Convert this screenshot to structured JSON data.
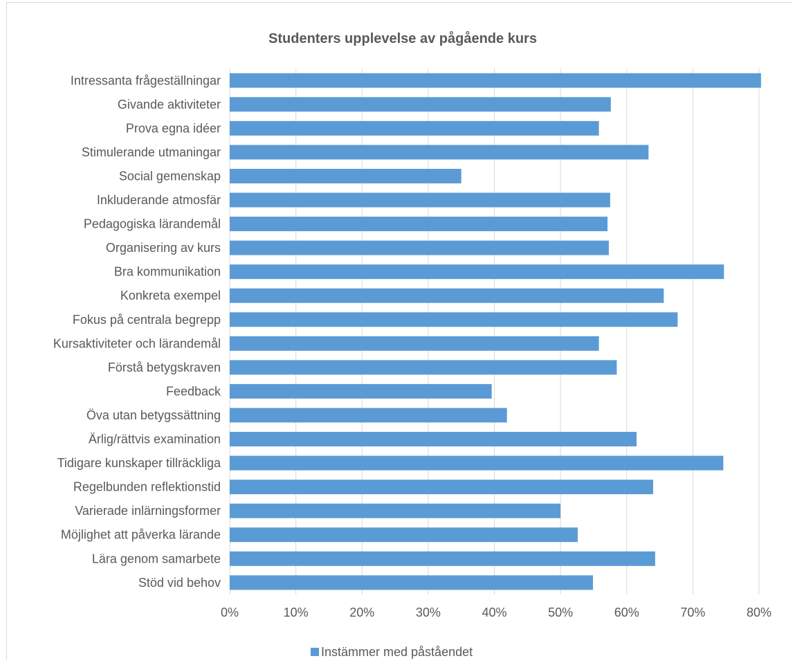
{
  "chart_data": {
    "type": "bar",
    "orientation": "horizontal",
    "title": "Studenters upplevelse av pågående kurs",
    "categories": [
      "Intressanta frågeställningar",
      "Givande aktiviteter",
      "Prova egna idéer",
      "Stimulerande utmaningar",
      "Social gemenskap",
      "Inkluderande atmosfär",
      "Pedagogiska lärandemål ",
      "Organisering av kurs",
      "Bra kommunikation",
      "Konkreta exempel ",
      "Fokus på centrala begrepp",
      "Kursaktiviteter och lärandemål",
      "Förstå betygskraven",
      "Feedback",
      "Öva utan betygssättning",
      "Ärlig/rättvis examination",
      "Tidigare kunskaper tillräckliga",
      "Regelbunden reflektionstid",
      "Varierade inlärningsformer",
      "Möjlighet att påverka lärande",
      "Lära genom samarbete",
      "Stöd vid behov"
    ],
    "series": [
      {
        "name": "Instämmer med påståendet",
        "color": "#5b9bd5",
        "values": [
          80.3,
          57.6,
          55.8,
          63.3,
          35.0,
          57.5,
          57.1,
          57.3,
          74.7,
          65.6,
          67.7,
          55.8,
          58.5,
          39.6,
          41.9,
          61.5,
          74.6,
          64.0,
          50.0,
          52.6,
          64.3,
          54.9
        ]
      }
    ],
    "xlim": [
      0,
      80
    ],
    "x_ticks": [
      0,
      10,
      20,
      30,
      40,
      50,
      60,
      70,
      80
    ],
    "x_tick_labels": [
      "0%",
      "10%",
      "20%",
      "30%",
      "40%",
      "50%",
      "60%",
      "70%",
      "80%"
    ],
    "xlabel": "",
    "ylabel": "",
    "grid": true,
    "legend_position": "bottom",
    "gridline_color": "#d9d9d9",
    "text_color": "#595959"
  }
}
